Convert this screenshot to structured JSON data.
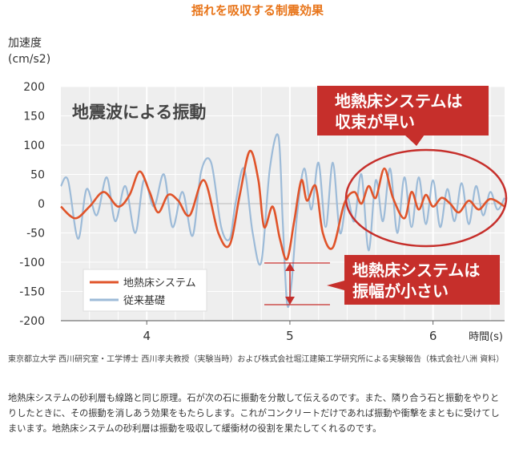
{
  "page_title": "揺れを吸収する制震効果",
  "chart_data": {
    "type": "line",
    "title": "地震波による振動",
    "ylabel": "加速度",
    "ylabel_unit": "(cm/s2)",
    "xlabel": "時間(s)",
    "xlim": [
      3.4,
      6.5
    ],
    "ylim": [
      -200,
      200
    ],
    "yticks": [
      200,
      150,
      100,
      50,
      0,
      -50,
      -100,
      -150,
      -200
    ],
    "xticks": [
      4,
      5,
      6
    ],
    "grid": true,
    "legend_position": "bottom-left",
    "series": [
      {
        "name": "地熱床システム",
        "color": "#e0542a",
        "x": [
          3.4,
          3.5,
          3.6,
          3.7,
          3.8,
          3.88,
          3.95,
          4.02,
          4.08,
          4.15,
          4.22,
          4.3,
          4.4,
          4.5,
          4.58,
          4.65,
          4.72,
          4.78,
          4.82,
          4.88,
          4.93,
          4.98,
          5.03,
          5.08,
          5.12,
          5.18,
          5.23,
          5.3,
          5.38,
          5.45,
          5.5,
          5.55,
          5.6,
          5.66,
          5.72,
          5.8,
          5.85,
          5.9,
          5.95,
          6.0,
          6.06,
          6.12,
          6.18,
          6.25,
          6.32,
          6.4,
          6.5
        ],
        "y": [
          -5,
          -25,
          -5,
          20,
          -5,
          15,
          55,
          20,
          -15,
          15,
          5,
          -20,
          40,
          -50,
          -70,
          15,
          90,
          40,
          -40,
          -5,
          -60,
          -95,
          -30,
          40,
          5,
          30,
          -50,
          -75,
          0,
          20,
          0,
          30,
          10,
          60,
          10,
          -25,
          20,
          -10,
          15,
          -5,
          10,
          0,
          -15,
          5,
          -10,
          8,
          -5
        ]
      },
      {
        "name": "従来基礎",
        "color": "#9dbbd8",
        "x": [
          3.4,
          3.45,
          3.52,
          3.58,
          3.65,
          3.72,
          3.78,
          3.85,
          3.92,
          3.98,
          4.05,
          4.12,
          4.18,
          4.25,
          4.32,
          4.38,
          4.45,
          4.52,
          4.58,
          4.62,
          4.68,
          4.74,
          4.8,
          4.86,
          4.92,
          4.95,
          4.98,
          5.01,
          5.05,
          5.1,
          5.15,
          5.2,
          5.25,
          5.3,
          5.35,
          5.4,
          5.45,
          5.5,
          5.55,
          5.6,
          5.65,
          5.7,
          5.75,
          5.8,
          5.85,
          5.9,
          5.95,
          6.0,
          6.05,
          6.1,
          6.15,
          6.2,
          6.25,
          6.3,
          6.35,
          6.4,
          6.45,
          6.5
        ],
        "y": [
          30,
          40,
          -60,
          25,
          -20,
          45,
          -30,
          30,
          -50,
          40,
          -5,
          50,
          -40,
          20,
          -55,
          55,
          70,
          -40,
          -60,
          0,
          60,
          -50,
          -100,
          60,
          115,
          -30,
          -170,
          -140,
          -20,
          60,
          -10,
          70,
          -40,
          70,
          -50,
          10,
          -30,
          50,
          -80,
          40,
          -30,
          60,
          -50,
          45,
          -40,
          45,
          -35,
          40,
          -40,
          25,
          -30,
          35,
          -35,
          30,
          -20,
          20,
          -10,
          10
        ]
      }
    ],
    "annotations": [
      "地熱床システムは\n収束が早い",
      "地熱床システムは\n振幅が小さい"
    ]
  },
  "source_note": "東京都立大学 西川研究室・工学博士 西川孝夫教授（実験当時）および株式会社堀江建築工学研究所による実験報告（株式会社八洲 資料）",
  "description": "地熱床システムの砂利層も線路と同じ原理。石が次の石に振動を分散して伝えるのです。また、隣り合う石と振動をやりとりしたときに、その振動を消しあう効果をもたらします。これがコンクリートだけであれば振動や衝撃をまともに受けてしまいます。地熱床システムの砂利層は振動を吸収して緩衝材の役割を果たしてくれるのです。",
  "colors": {
    "accent": "#e8751a",
    "callout": "#c62f2b",
    "series_red": "#e0542a",
    "series_blue": "#9dbbd8",
    "plot_bg": "#eeeeee"
  }
}
